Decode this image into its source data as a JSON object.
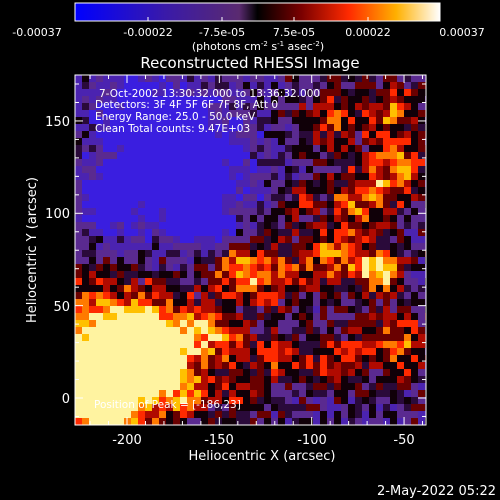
{
  "colorbar": {
    "ticks": [
      "-0.00037",
      "-0.00022",
      "-7.5e-05",
      "7.5e-05",
      "0.00022",
      "0.00037"
    ],
    "unit_main": "(photons cm",
    "unit_exp1": "-2",
    "unit_mid": " s",
    "unit_exp2": "-1",
    "unit_end": " asec",
    "unit_exp3": "-2",
    "unit_close": ")"
  },
  "title": "Reconstructed RHESSI Image",
  "info": {
    "line1": "7-Oct-2002 13:30:32.000 to 13:36:32.000",
    "line2": "Detectors: 3F 4F 5F 6F 7F 8F, Att 0",
    "line3": "Energy Range: 25.0 - 50.0 keV",
    "line4": "Clean    Total counts: 9.47E+03"
  },
  "peak_label": "Position of Peak = [-186,23]",
  "x_axis": {
    "label": "Heliocentric X (arcsec)",
    "ticks": [
      "-200",
      "-150",
      "-100",
      "-50"
    ]
  },
  "y_axis": {
    "label": "Heliocentric Y (arcsec)",
    "ticks": [
      "150",
      "100",
      "50",
      "0"
    ]
  },
  "footer_timestamp": "2-May-2022 05:22"
}
